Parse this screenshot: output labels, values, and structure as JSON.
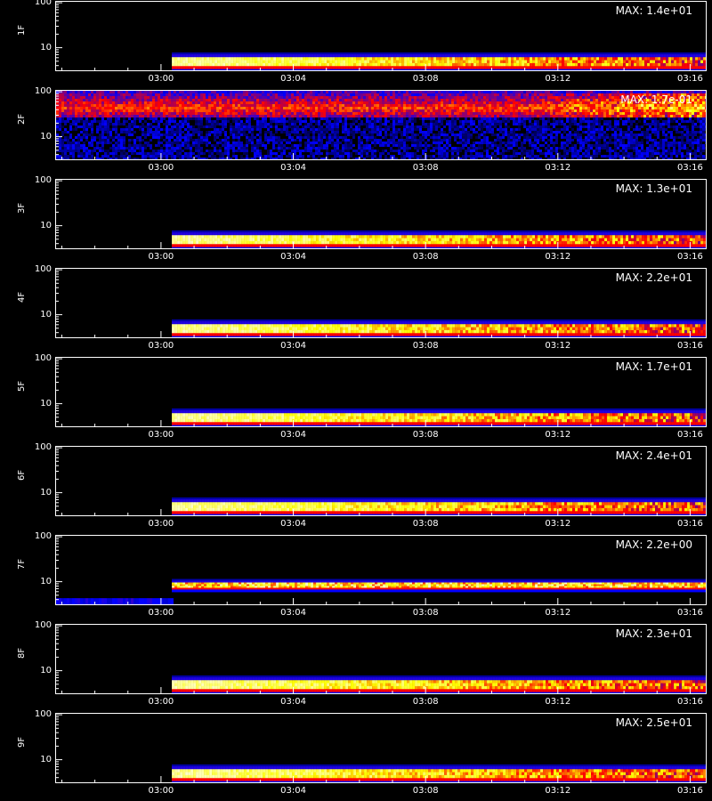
{
  "chart_data": {
    "type": "heatmap",
    "y_scale": "log",
    "ylim": [
      3,
      110
    ],
    "y_ticks": [
      "10",
      "100"
    ],
    "x_ticks": [
      "03:00",
      "03:04",
      "03:08",
      "03:12",
      "03:16"
    ],
    "x_range_minutes": [
      -3.2,
      16.5
    ],
    "x_tick_minutes": [
      0,
      4,
      8,
      12,
      16
    ],
    "colormap": [
      "#000000",
      "#0000ff",
      "#ff0000",
      "#ffff00",
      "#ffffff"
    ],
    "xlabel": "",
    "panels": [
      {
        "label": "1F",
        "max_text": "MAX: 1.4e+01",
        "band_low": 3.5,
        "band_high": 7.5,
        "start_minute": 0.3,
        "pattern": "steady"
      },
      {
        "label": "2F",
        "max_text": "MAX: 1.7e-01",
        "band_low": 3,
        "band_high": 110,
        "start_minute": -3.2,
        "pattern": "broad"
      },
      {
        "label": "3F",
        "max_text": "MAX: 1.3e+01",
        "band_low": 3.5,
        "band_high": 7.5,
        "start_minute": 0.3,
        "pattern": "steady"
      },
      {
        "label": "4F",
        "max_text": "MAX: 2.2e+01",
        "band_low": 3.5,
        "band_high": 7.5,
        "start_minute": 0.3,
        "pattern": "steady"
      },
      {
        "label": "5F",
        "max_text": "MAX: 1.7e+01",
        "band_low": 3.5,
        "band_high": 7.5,
        "start_minute": 0.3,
        "pattern": "steady"
      },
      {
        "label": "6F",
        "max_text": "MAX: 2.4e+01",
        "band_low": 3.5,
        "band_high": 7.5,
        "start_minute": 0.3,
        "pattern": "steady"
      },
      {
        "label": "7F",
        "max_text": "MAX: 2.2e+00",
        "band_low": 7,
        "band_high": 11,
        "start_minute": 0.3,
        "pattern": "noisy"
      },
      {
        "label": "8F",
        "max_text": "MAX: 2.3e+01",
        "band_low": 3.5,
        "band_high": 7.5,
        "start_minute": 0.3,
        "pattern": "steady"
      },
      {
        "label": "9F",
        "max_text": "MAX: 2.5e+01",
        "band_low": 3.5,
        "band_high": 7.5,
        "start_minute": 0.3,
        "pattern": "steady"
      }
    ]
  }
}
